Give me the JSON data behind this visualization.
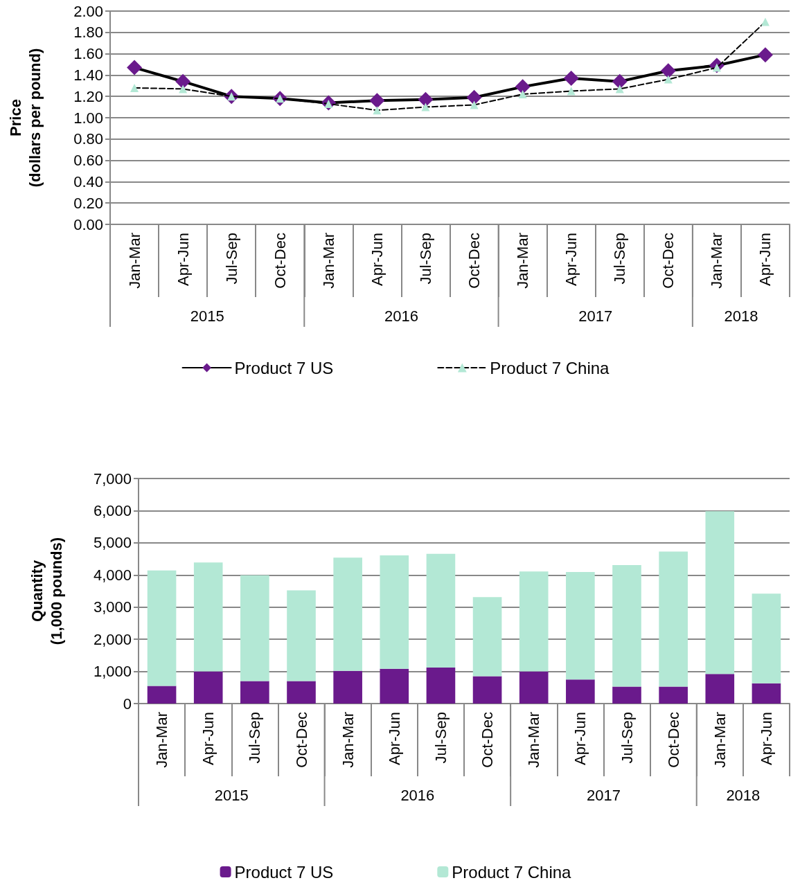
{
  "chart_data": [
    {
      "type": "line",
      "ylabel": "Price\n(dollars per pound)",
      "categories": [
        "Jan-Mar",
        "Apr-Jun",
        "Jul-Sep",
        "Oct-Dec",
        "Jan-Mar",
        "Apr-Jun",
        "Jul-Sep",
        "Oct-Dec",
        "Jan-Mar",
        "Apr-Jun",
        "Jul-Sep",
        "Oct-Dec",
        "Jan-Mar",
        "Apr-Jun"
      ],
      "series": [
        {
          "name": "Product 7 US",
          "color": "#6a1a8c",
          "marker": "diamond",
          "line_style": "solid",
          "values": [
            1.47,
            1.34,
            1.2,
            1.18,
            1.14,
            1.16,
            1.17,
            1.19,
            1.29,
            1.37,
            1.34,
            1.44,
            1.49,
            1.59
          ]
        },
        {
          "name": "Product 7 China",
          "color": "#b3e8d5",
          "marker": "triangle",
          "line_style": "dashed",
          "values": [
            1.28,
            1.27,
            1.2,
            1.18,
            1.13,
            1.07,
            1.1,
            1.12,
            1.22,
            1.25,
            1.27,
            1.36,
            1.47,
            1.9
          ]
        }
      ],
      "ylim": [
        0,
        2
      ],
      "yticks": [
        {
          "value": 0,
          "label": "0.00"
        },
        {
          "value": 0.2,
          "label": "0.20"
        },
        {
          "value": 0.4,
          "label": "0.40"
        },
        {
          "value": 0.6,
          "label": "0.60"
        },
        {
          "value": 0.8,
          "label": "0.80"
        },
        {
          "value": 1,
          "label": "1.00"
        },
        {
          "value": 1.2,
          "label": "1.20"
        },
        {
          "value": 1.4,
          "label": "1.40"
        },
        {
          "value": 1.6,
          "label": "1.60"
        },
        {
          "value": 1.8,
          "label": "1.80"
        },
        {
          "value": 2,
          "label": "2.00"
        }
      ],
      "annotations": [
        "2015",
        "2016",
        "2017",
        "2018"
      ],
      "grid": "y",
      "legend": "bottom"
    },
    {
      "type": "bar",
      "stacked": true,
      "ylabel": "Quantity\n(1,000 pounds)",
      "categories": [
        "Jan-Mar",
        "Apr-Jun",
        "Jul-Sep",
        "Oct-Dec",
        "Jan-Mar",
        "Apr-Jun",
        "Jul-Sep",
        "Oct-Dec",
        "Jan-Mar",
        "Apr-Jun",
        "Jul-Sep",
        "Oct-Dec",
        "Jan-Mar",
        "Apr-Jun"
      ],
      "series": [
        {
          "name": "Product 7 US",
          "color": "#6a1a8c",
          "values": [
            550,
            1000,
            700,
            700,
            1020,
            1080,
            1120,
            850,
            1000,
            750,
            530,
            530,
            920,
            630
          ]
        },
        {
          "name": "Product 7 China",
          "color": "#b3e8d5",
          "values": [
            3590,
            3390,
            3290,
            2820,
            3520,
            3530,
            3540,
            2460,
            3110,
            3340,
            3780,
            4200,
            5060,
            2790
          ]
        }
      ],
      "ylim": [
        0,
        7000
      ],
      "yticks": [
        {
          "value": 0,
          "label": "0"
        },
        {
          "value": 1000,
          "label": "1,000"
        },
        {
          "value": 2000,
          "label": "2,000"
        },
        {
          "value": 3000,
          "label": "3,000"
        },
        {
          "value": 4000,
          "label": "4,000"
        },
        {
          "value": 5000,
          "label": "5,000"
        },
        {
          "value": 6000,
          "label": "6,000"
        },
        {
          "value": 7000,
          "label": "7,000"
        }
      ],
      "annotations": [
        "2015",
        "2016",
        "2017",
        "2018"
      ],
      "grid": "y",
      "legend": "bottom"
    }
  ]
}
